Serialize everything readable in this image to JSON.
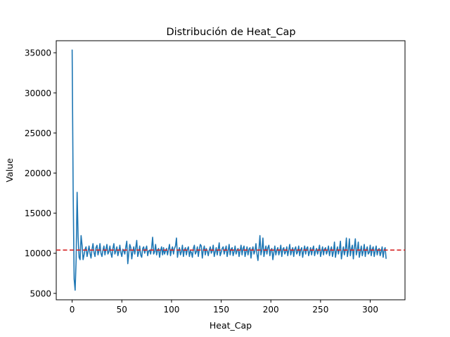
{
  "chart_data": {
    "type": "line",
    "title": "Distribución de Heat_Cap",
    "xlabel": "Heat_Cap",
    "ylabel": "Value",
    "xlim": [
      -16,
      335
    ],
    "ylim": [
      4200,
      36500
    ],
    "xticks": [
      0,
      50,
      100,
      150,
      200,
      250,
      300
    ],
    "yticks": [
      5000,
      10000,
      15000,
      20000,
      25000,
      30000,
      35000
    ],
    "grid": false,
    "legend": "none",
    "reference_line": {
      "y": 10400,
      "style": "dashed",
      "color": "#d62728"
    },
    "series": [
      {
        "color": "#1f77b4",
        "x_start": 0,
        "x_step": 1,
        "values": [
          35400,
          18000,
          6800,
          5400,
          9200,
          17600,
          12000,
          9500,
          9200,
          12200,
          11000,
          9200,
          9800,
          10500,
          10800,
          9600,
          10200,
          10900,
          10000,
          9400,
          10500,
          11200,
          10100,
          9600,
          10700,
          11000,
          9800,
          10300,
          11200,
          10000,
          9600,
          10400,
          10900,
          9800,
          10500,
          11100,
          9900,
          10200,
          10900,
          10000,
          9500,
          10600,
          11200,
          9900,
          10300,
          10800,
          9700,
          10200,
          11000,
          10100,
          9600,
          10500,
          10300,
          9900,
          10800,
          11500,
          8700,
          10000,
          11100,
          10700,
          9300,
          10200,
          10800,
          9900,
          10700,
          11600,
          9600,
          10100,
          10900,
          9800,
          9500,
          10600,
          10800,
          10000,
          10500,
          10900,
          9700,
          10300,
          10400,
          9900,
          10700,
          12000,
          9900,
          10200,
          11100,
          9800,
          10400,
          10600,
          9500,
          10300,
          10800,
          9800,
          10700,
          9900,
          10300,
          10600,
          9800,
          10500,
          11100,
          9700,
          10400,
          10800,
          9900,
          10600,
          10900,
          11900,
          9500,
          10300,
          10700,
          9800,
          10200,
          11000,
          9600,
          10400,
          10700,
          9800,
          10500,
          10800,
          9600,
          10300,
          10100,
          9500,
          10600,
          11000,
          9900,
          10200,
          10800,
          9600,
          10500,
          11100,
          10900,
          9400,
          10400,
          10900,
          9800,
          10600,
          10300,
          9700,
          10400,
          10800,
          10000,
          10300,
          11000,
          9600,
          10200,
          10700,
          9800,
          10500,
          11300,
          9700,
          10100,
          10600,
          10800,
          9900,
          10400,
          10900,
          9600,
          10300,
          11100,
          9800,
          10500,
          10700,
          9700,
          10200,
          10900,
          9900,
          10400,
          10600,
          9600,
          10300,
          11000,
          9800,
          10600,
          10900,
          9600,
          10200,
          10800,
          9800,
          10500,
          10700,
          9400,
          10400,
          10800,
          9900,
          10300,
          11200,
          9900,
          9100,
          10500,
          12200,
          9800,
          10400,
          11900,
          9600,
          10300,
          10900,
          9900,
          10700,
          11000,
          9700,
          10400,
          10600,
          9200,
          10100,
          10900,
          9800,
          10400,
          10700,
          9800,
          10300,
          11000,
          9600,
          10500,
          10700,
          9900,
          10200,
          10800,
          9700,
          10400,
          11100,
          9800,
          10300,
          10700,
          9600,
          10500,
          10800,
          9900,
          10200,
          10900,
          9700,
          10400,
          10700,
          9500,
          10300,
          10900,
          9900,
          10600,
          10800,
          9700,
          10200,
          10700,
          9800,
          10500,
          10900,
          9700,
          10300,
          10600,
          9900,
          10400,
          11000,
          9600,
          10200,
          10800,
          9800,
          10500,
          10700,
          9900,
          10300,
          10900,
          9700,
          10400,
          10800,
          9600,
          10200,
          11400,
          9500,
          10300,
          10800,
          9900,
          10500,
          11500,
          9300,
          10200,
          10800,
          9800,
          10400,
          11900,
          9600,
          10300,
          11800,
          9700,
          10500,
          11000,
          9300,
          10700,
          11800,
          9800,
          10400,
          11400,
          9500,
          10200,
          10900,
          9700,
          10300,
          11100,
          9600,
          10400,
          10800,
          9900,
          10100,
          11000,
          9700,
          10500,
          10800,
          9600,
          10300,
          10900,
          9800,
          10400,
          10600,
          9700,
          10200,
          10800,
          9500,
          10400,
          10700,
          9300
        ]
      }
    ]
  }
}
